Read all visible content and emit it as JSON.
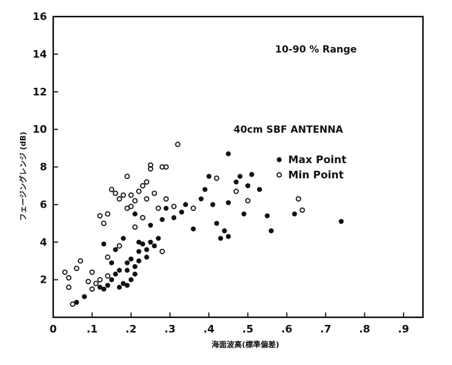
{
  "colors": {
    "ink": "#111111",
    "paper": "#ffffff"
  },
  "chart_data": {
    "type": "scatter",
    "title": "",
    "annotations": [
      "10-90 % Range",
      "40cm SBF ANTENNA"
    ],
    "xlabel": "海面波高(標準偏差)",
    "ylabel": "フェージングレンジ (dB)",
    "xlim": [
      0,
      0.95
    ],
    "ylim": [
      0,
      16
    ],
    "xticks": [
      0,
      0.1,
      0.2,
      0.3,
      0.4,
      0.5,
      0.6,
      0.7,
      0.8,
      0.9
    ],
    "xtick_labels": [
      "0",
      ".1",
      ".2",
      ".3",
      ".4",
      ".5",
      ".6",
      ".7",
      ".8",
      ".9"
    ],
    "yticks": [
      2,
      4,
      6,
      8,
      10,
      12,
      14,
      16
    ],
    "ytick_labels": [
      "2",
      "4",
      "6",
      "8",
      "10",
      "12",
      "14",
      "16"
    ],
    "grid": false,
    "legend_position": "right, middle",
    "series": [
      {
        "name": "Max Point",
        "marker": "filled-circle",
        "points": [
          [
            0.06,
            0.8
          ],
          [
            0.08,
            1.1
          ],
          [
            0.12,
            1.6
          ],
          [
            0.13,
            1.5
          ],
          [
            0.14,
            1.7
          ],
          [
            0.15,
            2.0
          ],
          [
            0.16,
            2.3
          ],
          [
            0.17,
            1.6
          ],
          [
            0.18,
            1.8
          ],
          [
            0.19,
            2.5
          ],
          [
            0.19,
            2.9
          ],
          [
            0.2,
            2.0
          ],
          [
            0.2,
            3.1
          ],
          [
            0.21,
            2.3
          ],
          [
            0.21,
            2.7
          ],
          [
            0.22,
            3.0
          ],
          [
            0.22,
            3.5
          ],
          [
            0.23,
            3.9
          ],
          [
            0.24,
            3.6
          ],
          [
            0.25,
            4.0
          ],
          [
            0.26,
            3.8
          ],
          [
            0.27,
            4.2
          ],
          [
            0.25,
            4.9
          ],
          [
            0.28,
            5.2
          ],
          [
            0.29,
            5.8
          ],
          [
            0.31,
            5.3
          ],
          [
            0.33,
            5.6
          ],
          [
            0.34,
            6.0
          ],
          [
            0.36,
            4.7
          ],
          [
            0.38,
            6.3
          ],
          [
            0.39,
            6.8
          ],
          [
            0.4,
            7.5
          ],
          [
            0.41,
            6.0
          ],
          [
            0.42,
            5.0
          ],
          [
            0.43,
            4.2
          ],
          [
            0.44,
            4.6
          ],
          [
            0.45,
            4.3
          ],
          [
            0.45,
            6.1
          ],
          [
            0.45,
            8.7
          ],
          [
            0.47,
            7.2
          ],
          [
            0.48,
            7.5
          ],
          [
            0.49,
            5.5
          ],
          [
            0.5,
            7.0
          ],
          [
            0.51,
            7.6
          ],
          [
            0.53,
            6.8
          ],
          [
            0.55,
            5.4
          ],
          [
            0.56,
            4.6
          ],
          [
            0.62,
            5.5
          ],
          [
            0.74,
            5.1
          ],
          [
            0.13,
            3.9
          ],
          [
            0.16,
            3.6
          ],
          [
            0.18,
            4.2
          ],
          [
            0.21,
            5.5
          ],
          [
            0.22,
            4.0
          ],
          [
            0.24,
            3.2
          ],
          [
            0.15,
            2.9
          ],
          [
            0.17,
            2.5
          ],
          [
            0.19,
            1.7
          ]
        ]
      },
      {
        "name": "Min Point",
        "marker": "open-circle",
        "points": [
          [
            0.03,
            2.4
          ],
          [
            0.04,
            2.1
          ],
          [
            0.04,
            1.6
          ],
          [
            0.05,
            0.7
          ],
          [
            0.06,
            2.6
          ],
          [
            0.07,
            3.0
          ],
          [
            0.09,
            1.9
          ],
          [
            0.1,
            1.5
          ],
          [
            0.11,
            1.8
          ],
          [
            0.12,
            2.0
          ],
          [
            0.12,
            5.4
          ],
          [
            0.13,
            5.0
          ],
          [
            0.14,
            5.5
          ],
          [
            0.14,
            2.2
          ],
          [
            0.15,
            6.8
          ],
          [
            0.16,
            6.6
          ],
          [
            0.17,
            6.3
          ],
          [
            0.18,
            6.5
          ],
          [
            0.19,
            7.5
          ],
          [
            0.19,
            5.8
          ],
          [
            0.2,
            6.5
          ],
          [
            0.2,
            5.9
          ],
          [
            0.21,
            6.2
          ],
          [
            0.22,
            6.7
          ],
          [
            0.23,
            7.0
          ],
          [
            0.24,
            7.2
          ],
          [
            0.24,
            6.3
          ],
          [
            0.25,
            7.9
          ],
          [
            0.25,
            8.1
          ],
          [
            0.26,
            6.6
          ],
          [
            0.27,
            5.8
          ],
          [
            0.28,
            8.0
          ],
          [
            0.29,
            8.0
          ],
          [
            0.29,
            6.3
          ],
          [
            0.31,
            5.9
          ],
          [
            0.32,
            9.2
          ],
          [
            0.36,
            5.8
          ],
          [
            0.42,
            7.4
          ],
          [
            0.47,
            6.7
          ],
          [
            0.5,
            6.2
          ],
          [
            0.64,
            5.7
          ],
          [
            0.63,
            6.3
          ],
          [
            0.21,
            4.8
          ],
          [
            0.23,
            5.3
          ],
          [
            0.17,
            3.8
          ],
          [
            0.14,
            3.2
          ],
          [
            0.1,
            2.4
          ],
          [
            0.28,
            3.5
          ]
        ]
      }
    ]
  }
}
